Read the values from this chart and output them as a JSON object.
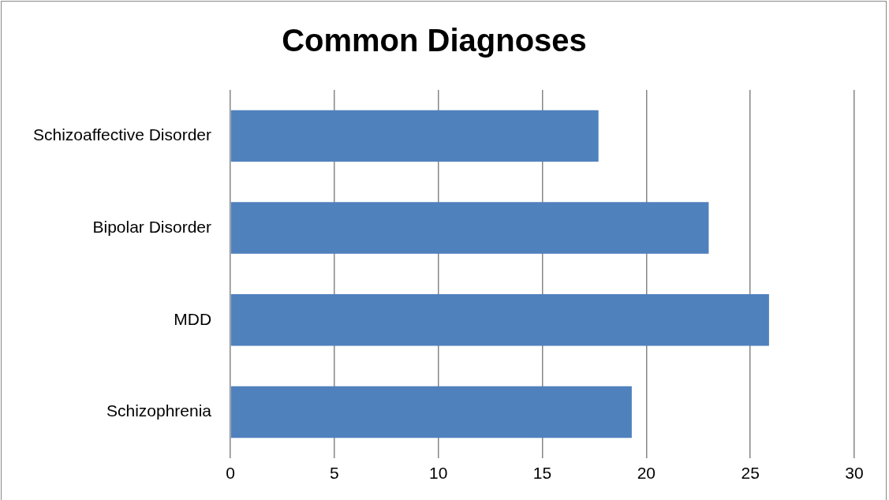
{
  "chart_data": {
    "type": "bar",
    "title": "Common Diagnoses",
    "orientation": "horizontal",
    "categories": [
      "Schizoaffective Disorder",
      "Bipolar Disorder",
      "MDD",
      "Schizophrenia"
    ],
    "values": [
      17.7,
      23.0,
      25.9,
      19.3
    ],
    "color": "#4f81bd",
    "xlim": [
      0,
      30
    ],
    "xticks": [
      0,
      5,
      10,
      15,
      20,
      25,
      30
    ],
    "grid": "x",
    "legend": false
  }
}
